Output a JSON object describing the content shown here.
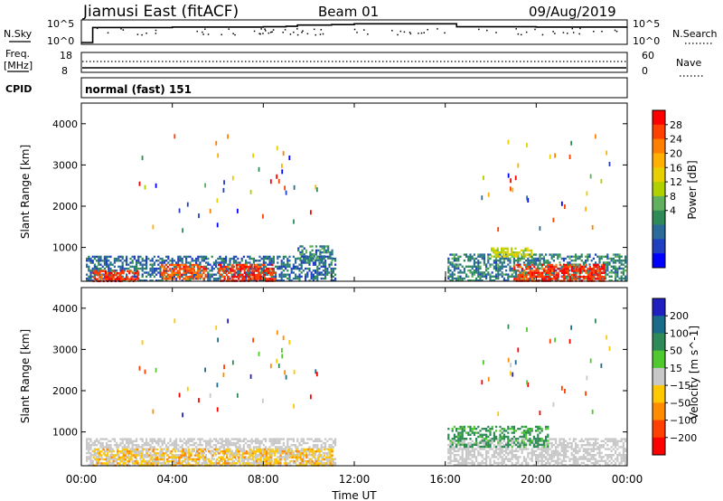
{
  "header": {
    "station": "Jiamusi East (fitACF)",
    "beam": "Beam 01",
    "date": "09/Aug/2019"
  },
  "noise_panel": {
    "left_label": "N.Sky",
    "right_label": "N.Search",
    "left_ticks": [
      "10^5",
      "10^0"
    ],
    "right_ticks": [
      "10^5",
      "10^0"
    ]
  },
  "freq_panel": {
    "left_label_1": "Freq.",
    "left_label_2": "[MHz]",
    "left_ticks": [
      "18",
      "8"
    ],
    "right_label": "Nave",
    "right_ticks": [
      "60",
      "0"
    ]
  },
  "cpid": {
    "label": "CPID",
    "value": "normal (fast) 151"
  },
  "axes": {
    "ylabel": "Slant Range [km]",
    "yticks": [
      "4000",
      "3000",
      "2000",
      "1000"
    ],
    "xticks": [
      "00:00",
      "04:00",
      "08:00",
      "12:00",
      "16:00",
      "20:00",
      "00:00"
    ],
    "xlabel": "Time UT"
  },
  "power_colorbar": {
    "label": "Power [dB]",
    "ticks": [
      "28",
      "24",
      "20",
      "16",
      "12",
      "8",
      "4"
    ],
    "colors": [
      "#ff0000",
      "#ff4000",
      "#ff8000",
      "#ffb000",
      "#e8d000",
      "#b0d000",
      "#60b060",
      "#2e8b57",
      "#2a6b9a",
      "#2040c0",
      "#0000ff"
    ]
  },
  "velocity_colorbar": {
    "label": "Velocity [m s^-1]",
    "ticks": [
      "200",
      "100",
      "50",
      "15",
      "−15",
      "−50",
      "−100",
      "−200"
    ],
    "colors": [
      "#2020c0",
      "#1a6b8a",
      "#2e8b57",
      "#50c830",
      "#c8c8c8",
      "#ffc800",
      "#ff8c00",
      "#ff4000",
      "#ff0000"
    ]
  },
  "chart_data": [
    {
      "type": "line",
      "title": "N.Sky",
      "x": [
        "00:00",
        "00:30",
        "04:00",
        "08:00",
        "09:00",
        "09:30",
        "11:00",
        "12:00",
        "16:00",
        "16:30",
        "20:00",
        "24:00"
      ],
      "y_log10": [
        0,
        3.6,
        3.7,
        3.8,
        3.9,
        4.2,
        4.3,
        4.5,
        4.5,
        3.8,
        3.7,
        3.7
      ]
    },
    {
      "type": "heatmap",
      "title": "Power [dB]",
      "xlabel": "Time UT",
      "ylabel": "Slant Range [km]",
      "xlim": [
        "00:00",
        "24:00"
      ],
      "ylim": [
        180,
        4500
      ],
      "regions": [
        {
          "t": [
            0.2,
            11.2
          ],
          "r": [
            180,
            800
          ],
          "power_db": 6
        },
        {
          "t": [
            16.1,
            23.9
          ],
          "r": [
            180,
            850
          ],
          "power_db": 8
        },
        {
          "t": [
            9.5,
            11.0
          ],
          "r": [
            700,
            1050
          ],
          "power_db": 8
        },
        {
          "t": [
            0.5,
            2.5
          ],
          "r": [
            180,
            450
          ],
          "power_db": 28
        },
        {
          "t": [
            3.5,
            5.5
          ],
          "r": [
            250,
            600
          ],
          "power_db": 26
        },
        {
          "t": [
            6.0,
            8.5
          ],
          "r": [
            180,
            600
          ],
          "power_db": 28
        },
        {
          "t": [
            19.0,
            23.0
          ],
          "r": [
            180,
            600
          ],
          "power_db": 28
        },
        {
          "t": [
            18.0,
            19.8
          ],
          "r": [
            800,
            1000
          ],
          "power_db": 16
        }
      ]
    },
    {
      "type": "heatmap",
      "title": "Velocity [m s^-1]",
      "xlabel": "Time UT",
      "ylabel": "Slant Range [km]",
      "xlim": [
        "00:00",
        "24:00"
      ],
      "ylim": [
        180,
        4500
      ],
      "regions": [
        {
          "t": [
            0.2,
            11.2
          ],
          "r": [
            180,
            850
          ],
          "velocity": 0
        },
        {
          "t": [
            16.1,
            23.9
          ],
          "r": [
            180,
            850
          ],
          "velocity": 0
        },
        {
          "t": [
            16.1,
            20.5
          ],
          "r": [
            650,
            1150
          ],
          "velocity": 40
        },
        {
          "t": [
            0.5,
            11.0
          ],
          "r": [
            180,
            600
          ],
          "velocity": -30
        }
      ]
    }
  ]
}
